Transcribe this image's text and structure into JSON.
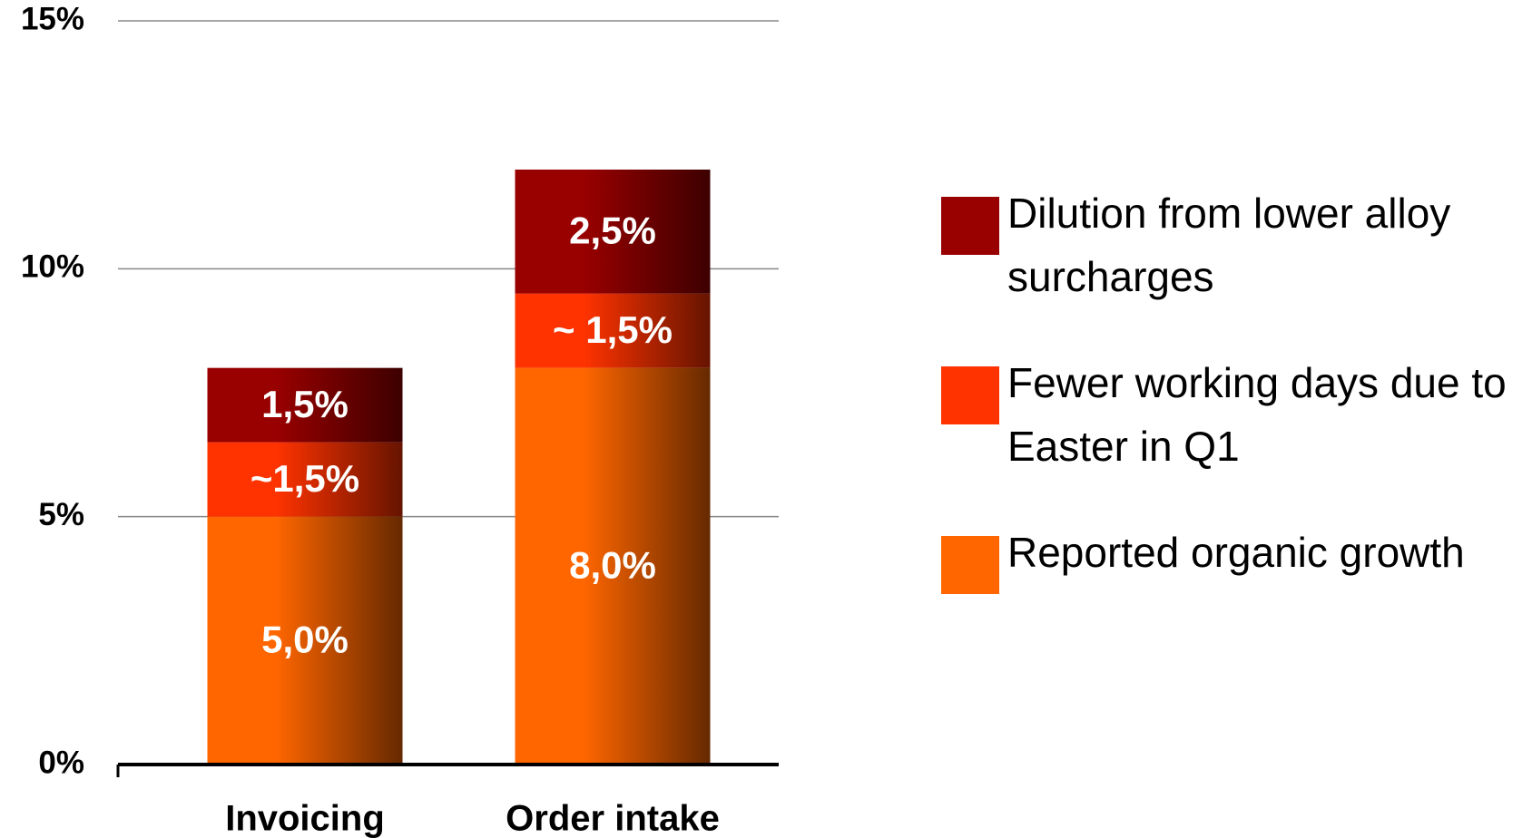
{
  "chart_data": {
    "type": "stacked_bar",
    "categories": [
      "Invoicing",
      "Order intake"
    ],
    "series": [
      {
        "name": "Reported organic growth",
        "color": "#ff6600",
        "values": [
          5.0,
          8.0
        ],
        "value_labels": [
          "5,0%",
          "8,0%"
        ]
      },
      {
        "name": "Fewer working days due to Easter in Q1",
        "color": "#ff3300",
        "values": [
          1.5,
          1.5
        ],
        "value_labels": [
          "~1,5%",
          "~ 1,5%"
        ]
      },
      {
        "name": "Dilution from lower alloy surcharges",
        "color": "#990000",
        "values": [
          1.5,
          2.5
        ],
        "value_labels": [
          "1,5%",
          "2,5%"
        ]
      }
    ],
    "ylim": [
      0,
      15
    ],
    "yticks": [
      {
        "value": 0,
        "label": "0%"
      },
      {
        "value": 5,
        "label": "5%"
      },
      {
        "value": 10,
        "label": "10%"
      },
      {
        "value": 15,
        "label": "15%"
      }
    ],
    "grid": true,
    "legend": "right"
  }
}
